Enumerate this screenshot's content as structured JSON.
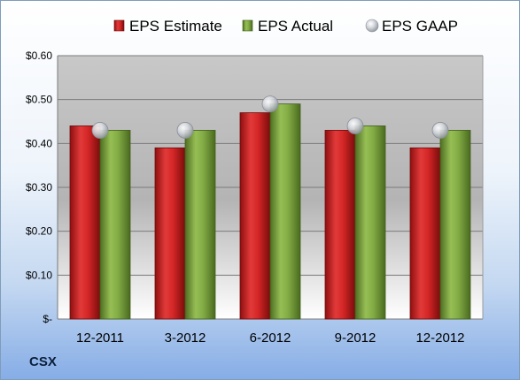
{
  "chart_data": {
    "type": "bar",
    "categories": [
      "12-2011",
      "3-2012",
      "6-2012",
      "9-2012",
      "12-2012"
    ],
    "series": [
      {
        "name": "EPS Estimate",
        "kind": "bar",
        "color": "#cc1f1f",
        "values": [
          0.44,
          0.39,
          0.47,
          0.43,
          0.39
        ]
      },
      {
        "name": "EPS Actual",
        "kind": "bar",
        "color": "#7aa33b",
        "values": [
          0.43,
          0.43,
          0.49,
          0.44,
          0.43
        ]
      },
      {
        "name": "EPS GAAP",
        "kind": "marker",
        "color": "#b9bec6",
        "values": [
          0.43,
          0.43,
          0.49,
          0.44,
          0.43
        ]
      }
    ],
    "ylim": [
      0,
      0.6
    ],
    "yticks": [
      0,
      0.1,
      0.2,
      0.3,
      0.4,
      0.5,
      0.6
    ],
    "ytick_labels": [
      "$-",
      "$0.10",
      "$0.20",
      "$0.30",
      "$0.40",
      "$0.50",
      "$0.60"
    ],
    "grid": true,
    "legend_position": "top"
  },
  "ticker": "CSX"
}
